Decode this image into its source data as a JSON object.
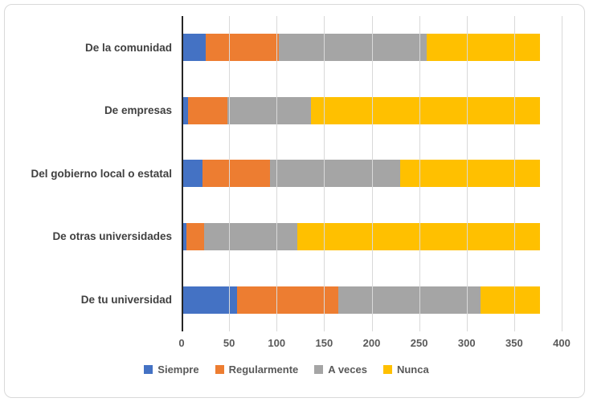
{
  "chart_data": {
    "type": "bar",
    "orientation": "horizontal",
    "stacked": true,
    "title": "",
    "xlabel": "",
    "ylabel": "",
    "categories": [
      "De la comunidad",
      "De empresas",
      "Del gobierno local o estatal",
      "De otras universidades",
      "De tu universidad"
    ],
    "series": [
      {
        "name": "Siempre",
        "color": "#4472C4",
        "values": [
          25,
          7,
          22,
          5,
          58
        ]
      },
      {
        "name": "Regularmente",
        "color": "#ED7D31",
        "values": [
          77,
          41,
          71,
          19,
          107
        ]
      },
      {
        "name": "A veces",
        "color": "#A5A5A5",
        "values": [
          156,
          88,
          137,
          98,
          150
        ]
      },
      {
        "name": "Nunca",
        "color": "#FFC000",
        "values": [
          119,
          241,
          147,
          255,
          62
        ]
      }
    ],
    "xlim": [
      0,
      400
    ],
    "x_ticks": [
      0,
      50,
      100,
      150,
      200,
      250,
      300,
      350,
      400
    ],
    "grid": "vertical",
    "grid_color": "#d9d9d9",
    "axis_line_color": "#262626",
    "legend_position": "bottom"
  }
}
